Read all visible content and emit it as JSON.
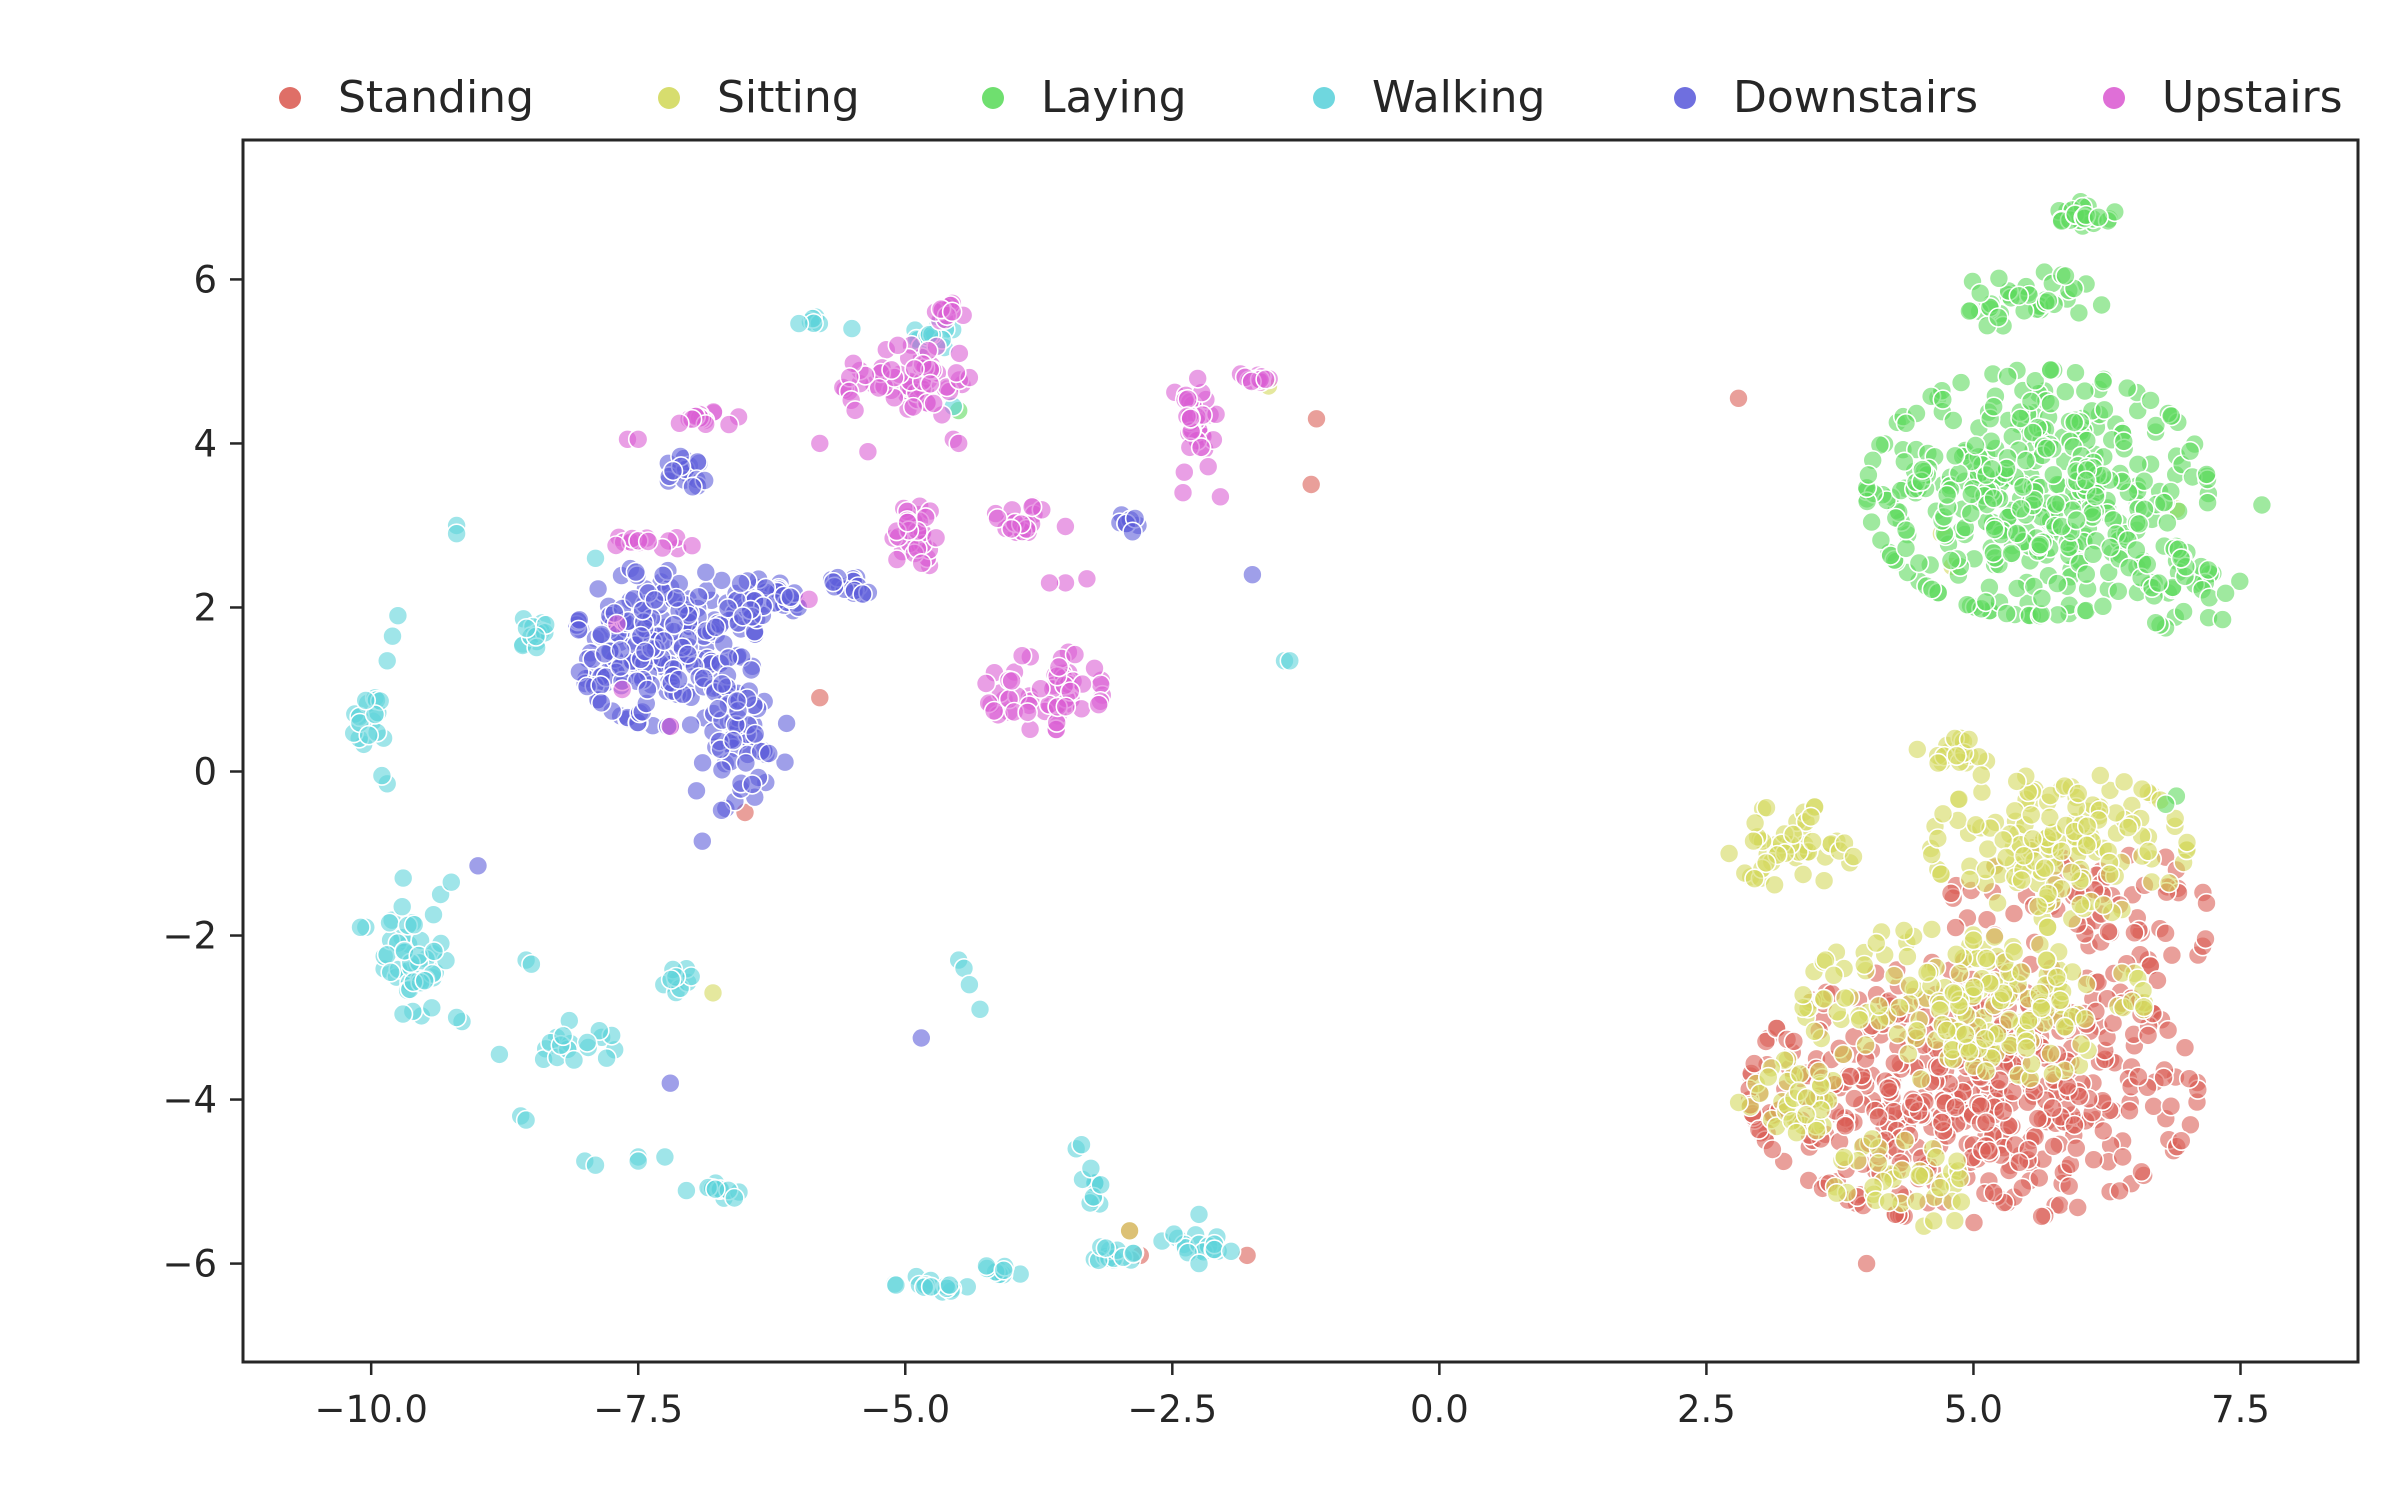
{
  "chart_data": {
    "type": "scatter",
    "title": "",
    "xlabel": "",
    "ylabel": "",
    "xlim": [
      -11.2,
      8.6
    ],
    "ylim": [
      -7.2,
      7.7
    ],
    "xticks": [
      -10.0,
      -7.5,
      -5.0,
      -2.5,
      0.0,
      2.5,
      5.0,
      7.5
    ],
    "xtick_labels": [
      "−10.0",
      "−7.5",
      "−5.0",
      "−2.5",
      "0.0",
      "2.5",
      "5.0",
      "7.5"
    ],
    "yticks": [
      6,
      4,
      2,
      0,
      -2,
      -4,
      -6
    ],
    "ytick_labels": [
      "6",
      "4",
      "2",
      "0",
      "−2",
      "−4",
      "−6"
    ],
    "grid": false,
    "legend": {
      "placement": "top",
      "orientation": "horizontal"
    },
    "marker_opacity": 0.6,
    "series": [
      {
        "name": "Standing",
        "color": "#db5f57",
        "clusters": [
          {
            "cx": 5.0,
            "cy": -3.9,
            "rx": 2.1,
            "ry": 1.6,
            "n": 520
          },
          {
            "cx": 6.6,
            "cy": -1.8,
            "rx": 0.6,
            "ry": 0.8,
            "n": 40
          },
          {
            "cx": 5.5,
            "cy": -1.5,
            "rx": 0.9,
            "ry": 0.6,
            "n": 30
          }
        ],
        "points": [
          [
            2.8,
            4.55
          ],
          [
            -1.15,
            4.3
          ],
          [
            -1.2,
            3.5
          ],
          [
            -5.8,
            0.9
          ],
          [
            -6.5,
            -0.5
          ],
          [
            -2.9,
            -5.6
          ],
          [
            -2.8,
            -5.9
          ],
          [
            -1.8,
            -5.9
          ],
          [
            6.9,
            -1.2
          ],
          [
            4.0,
            -6.0
          ]
        ]
      },
      {
        "name": "Sitting",
        "color": "#d3d95e",
        "clusters": [
          {
            "cx": 5.8,
            "cy": -0.9,
            "rx": 1.2,
            "ry": 0.9,
            "n": 150
          },
          {
            "cx": 3.3,
            "cy": -0.9,
            "rx": 0.6,
            "ry": 0.5,
            "n": 50
          },
          {
            "cx": 5.0,
            "cy": -2.8,
            "rx": 1.6,
            "ry": 1.0,
            "n": 190
          },
          {
            "cx": 4.4,
            "cy": -5.0,
            "rx": 0.7,
            "ry": 0.6,
            "n": 40
          },
          {
            "cx": 4.8,
            "cy": 0.2,
            "rx": 0.5,
            "ry": 0.3,
            "n": 20
          },
          {
            "cx": 3.4,
            "cy": -4.0,
            "rx": 0.6,
            "ry": 0.5,
            "n": 35
          }
        ],
        "points": [
          [
            -6.8,
            -2.7
          ],
          [
            -2.9,
            -5.6
          ],
          [
            4.8,
            2.5
          ],
          [
            4.7,
            2.9
          ],
          [
            6.9,
            3.2
          ],
          [
            -1.6,
            4.7
          ]
        ]
      },
      {
        "name": "Laying",
        "color": "#5fdb5f",
        "clusters": [
          {
            "cx": 5.6,
            "cy": 3.4,
            "rx": 1.6,
            "ry": 1.5,
            "n": 430
          },
          {
            "cx": 6.05,
            "cy": 6.8,
            "rx": 0.28,
            "ry": 0.15,
            "n": 25
          },
          {
            "cx": 5.5,
            "cy": 5.7,
            "rx": 0.7,
            "ry": 0.4,
            "n": 40
          },
          {
            "cx": 7.0,
            "cy": 2.3,
            "rx": 0.5,
            "ry": 0.6,
            "n": 35
          }
        ],
        "points": [
          [
            7.7,
            3.25
          ],
          [
            6.9,
            -0.3
          ],
          [
            -4.5,
            4.4
          ],
          [
            6.8,
            -0.4
          ]
        ]
      },
      {
        "name": "Walking",
        "color": "#5fd3db",
        "clusters": [
          {
            "cx": -10.05,
            "cy": 0.6,
            "rx": 0.2,
            "ry": 0.35,
            "n": 18
          },
          {
            "cx": -9.6,
            "cy": -2.3,
            "rx": 0.3,
            "ry": 0.7,
            "n": 45
          },
          {
            "cx": -8.5,
            "cy": 1.7,
            "rx": 0.15,
            "ry": 0.2,
            "n": 14
          },
          {
            "cx": -8.1,
            "cy": -3.3,
            "rx": 0.4,
            "ry": 0.3,
            "n": 18
          },
          {
            "cx": -7.1,
            "cy": -2.55,
            "rx": 0.2,
            "ry": 0.15,
            "n": 10
          },
          {
            "cx": -6.8,
            "cy": -5.1,
            "rx": 0.25,
            "ry": 0.12,
            "n": 12
          },
          {
            "cx": -4.75,
            "cy": -6.25,
            "rx": 0.35,
            "ry": 0.1,
            "n": 16
          },
          {
            "cx": -4.1,
            "cy": -6.1,
            "rx": 0.2,
            "ry": 0.1,
            "n": 10
          },
          {
            "cx": -3.05,
            "cy": -5.9,
            "rx": 0.25,
            "ry": 0.12,
            "n": 14
          },
          {
            "cx": -2.3,
            "cy": -5.75,
            "rx": 0.3,
            "ry": 0.15,
            "n": 16
          },
          {
            "cx": -3.25,
            "cy": -5.1,
            "rx": 0.1,
            "ry": 0.3,
            "n": 10
          },
          {
            "cx": -4.7,
            "cy": 5.3,
            "rx": 0.25,
            "ry": 0.15,
            "n": 14
          },
          {
            "cx": -5.9,
            "cy": 5.5,
            "rx": 0.15,
            "ry": 0.05,
            "n": 6
          }
        ],
        "points": [
          [
            -9.2,
            3.0
          ],
          [
            -9.2,
            2.9
          ],
          [
            -9.75,
            1.9
          ],
          [
            -9.8,
            1.65
          ],
          [
            -9.85,
            1.35
          ],
          [
            -9.85,
            -0.15
          ],
          [
            -9.9,
            -0.05
          ],
          [
            -10.05,
            -1.9
          ],
          [
            -10.1,
            -1.9
          ],
          [
            -9.7,
            -1.3
          ],
          [
            -9.35,
            -1.5
          ],
          [
            -9.25,
            -1.35
          ],
          [
            -9.15,
            -3.05
          ],
          [
            -9.2,
            -3.0
          ],
          [
            -8.55,
            -2.3
          ],
          [
            -8.5,
            -2.35
          ],
          [
            -8.6,
            -4.2
          ],
          [
            -8.55,
            -4.25
          ],
          [
            -8.0,
            -4.75
          ],
          [
            -7.9,
            -4.8
          ],
          [
            -8.8,
            -3.45
          ],
          [
            -7.5,
            -4.7
          ],
          [
            -7.5,
            -4.75
          ],
          [
            -7.25,
            -4.7
          ],
          [
            -6.6,
            -5.2
          ],
          [
            -4.5,
            -2.3
          ],
          [
            -4.45,
            -2.4
          ],
          [
            -4.4,
            -2.6
          ],
          [
            -4.3,
            -2.9
          ],
          [
            -3.4,
            -4.6
          ],
          [
            -3.35,
            -4.55
          ],
          [
            -2.25,
            -5.4
          ],
          [
            -2.25,
            -6.0
          ],
          [
            -1.95,
            -5.85
          ],
          [
            -1.45,
            1.35
          ],
          [
            -1.4,
            1.35
          ],
          [
            -7.9,
            2.6
          ],
          [
            -7.8,
            1.5
          ],
          [
            -4.55,
            4.45
          ],
          [
            -5.5,
            5.4
          ]
        ]
      },
      {
        "name": "Downstairs",
        "color": "#5f5fdb",
        "clusters": [
          {
            "cx": -7.25,
            "cy": 1.55,
            "rx": 0.85,
            "ry": 1.0,
            "n": 230
          },
          {
            "cx": -6.6,
            "cy": 0.4,
            "rx": 0.5,
            "ry": 0.9,
            "n": 60
          },
          {
            "cx": -6.3,
            "cy": 2.1,
            "rx": 0.4,
            "ry": 0.25,
            "n": 40
          },
          {
            "cx": -7.05,
            "cy": 3.65,
            "rx": 0.2,
            "ry": 0.2,
            "n": 18
          },
          {
            "cx": -5.5,
            "cy": 2.3,
            "rx": 0.25,
            "ry": 0.15,
            "n": 15
          },
          {
            "cx": -2.9,
            "cy": 3.0,
            "rx": 0.15,
            "ry": 0.15,
            "n": 8
          }
        ],
        "points": [
          [
            -9.0,
            -1.15
          ],
          [
            -7.2,
            -3.8
          ],
          [
            -4.85,
            -3.25
          ],
          [
            -1.75,
            2.4
          ],
          [
            -6.9,
            -0.85
          ]
        ]
      },
      {
        "name": "Upstairs",
        "color": "#db5fd3",
        "clusters": [
          {
            "cx": -4.85,
            "cy": 4.8,
            "rx": 0.45,
            "ry": 0.5,
            "n": 55
          },
          {
            "cx": -4.6,
            "cy": 5.6,
            "rx": 0.15,
            "ry": 0.12,
            "n": 12
          },
          {
            "cx": -4.9,
            "cy": 2.9,
            "rx": 0.25,
            "ry": 0.45,
            "n": 35
          },
          {
            "cx": -3.7,
            "cy": 1.0,
            "rx": 0.55,
            "ry": 0.5,
            "n": 60
          },
          {
            "cx": -3.9,
            "cy": 3.0,
            "rx": 0.4,
            "ry": 0.25,
            "n": 20
          },
          {
            "cx": -2.3,
            "cy": 4.2,
            "rx": 0.25,
            "ry": 0.6,
            "n": 35
          },
          {
            "cx": -1.7,
            "cy": 4.8,
            "rx": 0.2,
            "ry": 0.08,
            "n": 12
          },
          {
            "cx": -6.9,
            "cy": 4.3,
            "rx": 0.35,
            "ry": 0.1,
            "n": 14
          },
          {
            "cx": -7.35,
            "cy": 2.8,
            "rx": 0.4,
            "ry": 0.1,
            "n": 14
          },
          {
            "cx": -5.5,
            "cy": 4.7,
            "rx": 0.2,
            "ry": 0.3,
            "n": 10
          }
        ],
        "points": [
          [
            -5.8,
            4.0
          ],
          [
            -5.35,
            3.9
          ],
          [
            -5.9,
            2.1
          ],
          [
            -7.6,
            4.05
          ],
          [
            -7.5,
            4.05
          ],
          [
            -7.7,
            1.8
          ],
          [
            -7.2,
            0.55
          ],
          [
            -7.65,
            1.0
          ],
          [
            -2.4,
            3.4
          ],
          [
            -2.05,
            3.35
          ],
          [
            -3.5,
            2.3
          ],
          [
            -3.65,
            2.3
          ],
          [
            -4.55,
            4.05
          ],
          [
            -4.5,
            4.0
          ],
          [
            -3.3,
            2.35
          ]
        ]
      }
    ]
  }
}
